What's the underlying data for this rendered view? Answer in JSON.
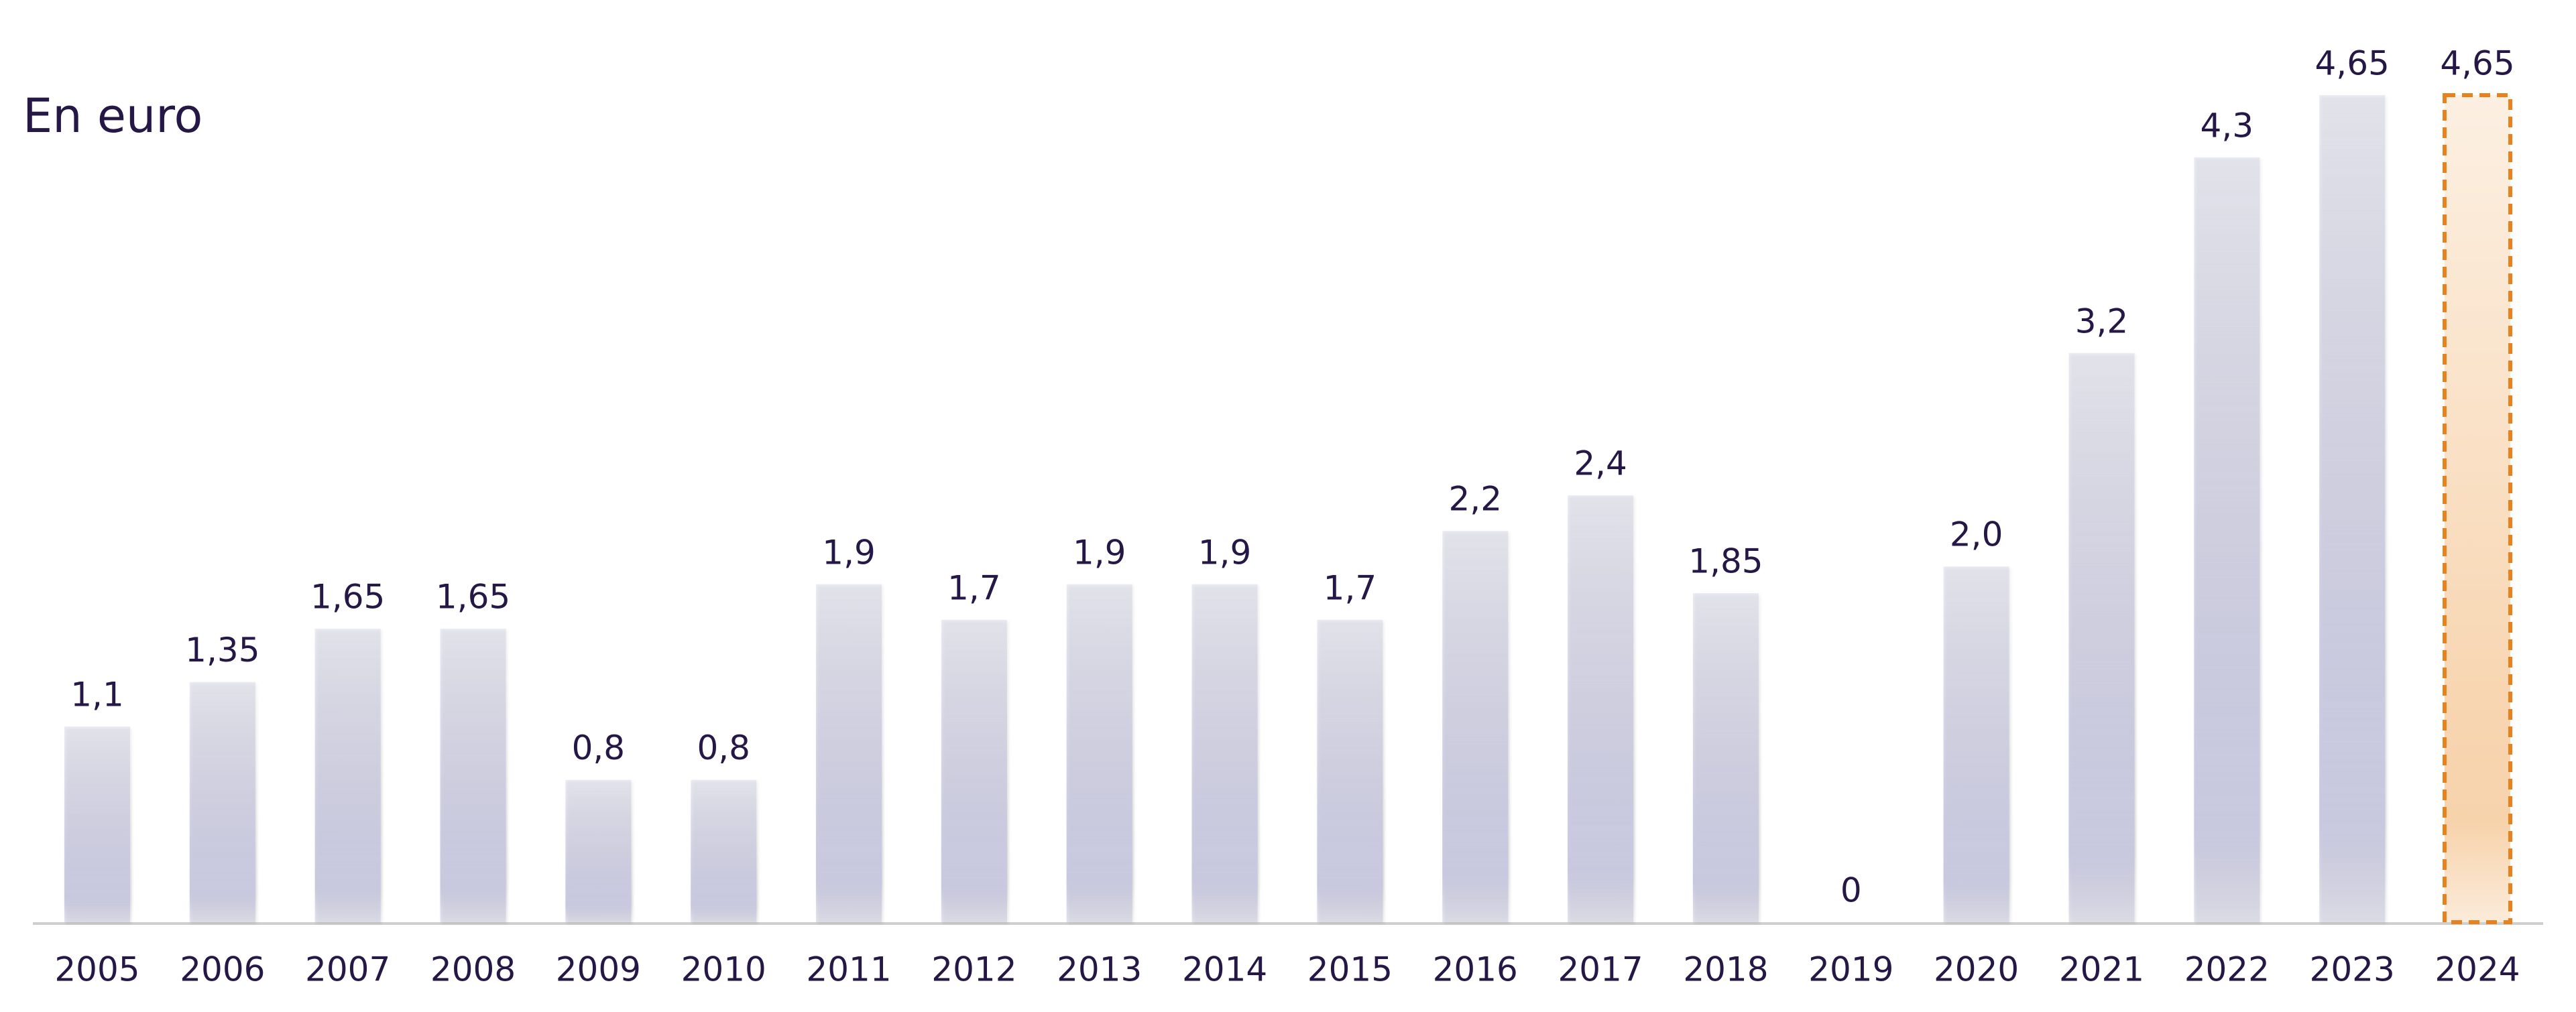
{
  "chart_data": {
    "type": "bar",
    "subtitle": "En euro",
    "categories": [
      "2005",
      "2006",
      "2007",
      "2008",
      "2009",
      "2010",
      "2011",
      "2012",
      "2013",
      "2014",
      "2015",
      "2016",
      "2017",
      "2018",
      "2019",
      "2020",
      "2021",
      "2022",
      "2023",
      "2024"
    ],
    "values": [
      1.1,
      1.35,
      1.65,
      1.65,
      0.8,
      0.8,
      1.9,
      1.7,
      1.9,
      1.9,
      1.7,
      2.2,
      2.4,
      1.85,
      0,
      2.0,
      3.2,
      4.3,
      4.65,
      4.65
    ],
    "value_labels": [
      "1,1",
      "1,35",
      "1,65",
      "1,65",
      "0,8",
      "0,8",
      "1,9",
      "1,7",
      "1,9",
      "1,9",
      "1,7",
      "2,2",
      "2,4",
      "1,85",
      "0",
      "2,0",
      "3,2",
      "4,3",
      "4,65",
      "4,65"
    ],
    "colors": [
      "#c8c8df",
      "#c8c8df",
      "#c8c8df",
      "#c8c8df",
      "#c8c8df",
      "#c8c8df",
      "#c8c8df",
      "#c8c8df",
      "#c8c8df",
      "#c8c8df",
      "#c8c8df",
      "#c8c8df",
      "#c8c8df",
      "#c8c8df",
      "#c8c8df",
      "#c8c8df",
      "#c8c8df",
      "#c8c8df",
      "#c8c8df",
      "#f7d3ac"
    ],
    "edge_colors": [
      null,
      null,
      null,
      null,
      null,
      null,
      null,
      null,
      null,
      null,
      null,
      null,
      null,
      null,
      null,
      null,
      null,
      null,
      null,
      "#e8821e"
    ],
    "ylim": [
      0,
      4.65
    ]
  }
}
